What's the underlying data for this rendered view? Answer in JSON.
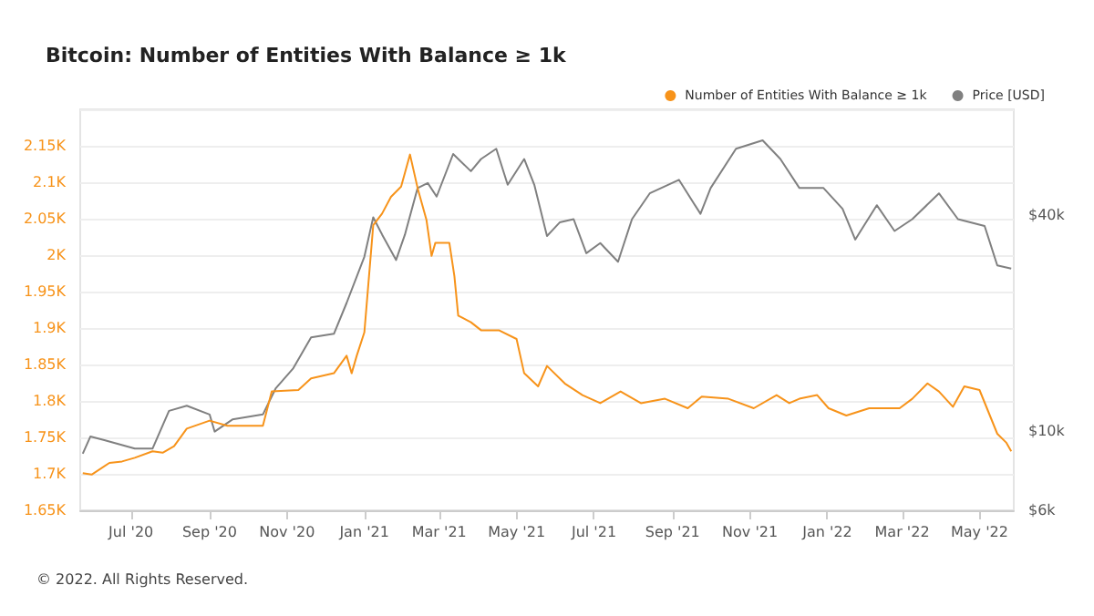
{
  "chart_data": {
    "type": "line",
    "title": "Bitcoin: Number of Entities With Balance ≥ 1k",
    "annotations": [
      "© 2022. All Rights Reserved."
    ],
    "xlim": [
      "2020-05-22",
      "2022-05-28"
    ],
    "xticks": [
      {
        "value": "2020-07-01",
        "label": "Jul '20"
      },
      {
        "value": "2020-09-01",
        "label": "Sep '20"
      },
      {
        "value": "2020-11-01",
        "label": "Nov '20"
      },
      {
        "value": "2021-01-01",
        "label": "Jan '21"
      },
      {
        "value": "2021-03-01",
        "label": "Mar '21"
      },
      {
        "value": "2021-05-01",
        "label": "May '21"
      },
      {
        "value": "2021-07-01",
        "label": "Jul '21"
      },
      {
        "value": "2021-09-01",
        "label": "Sep '21"
      },
      {
        "value": "2021-11-01",
        "label": "Nov '21"
      },
      {
        "value": "2022-01-01",
        "label": "Jan '22"
      },
      {
        "value": "2022-03-01",
        "label": "Mar '22"
      },
      {
        "value": "2022-05-01",
        "label": "May '22"
      }
    ],
    "ylim": [
      1650,
      2200
    ],
    "yticks": [
      {
        "value": 1650,
        "label": "1.65K"
      },
      {
        "value": 1700,
        "label": "1.7K"
      },
      {
        "value": 1750,
        "label": "1.75K"
      },
      {
        "value": 1800,
        "label": "1.8K"
      },
      {
        "value": 1850,
        "label": "1.85K"
      },
      {
        "value": 1900,
        "label": "1.9K"
      },
      {
        "value": 1950,
        "label": "1.95K"
      },
      {
        "value": 2000,
        "label": "2K"
      },
      {
        "value": 2050,
        "label": "2.05K"
      },
      {
        "value": 2100,
        "label": "2.1K"
      },
      {
        "value": 2150,
        "label": "2.15K"
      },
      {
        "value": 2200,
        "label": null
      }
    ],
    "y2lim": [
      6000,
      79000
    ],
    "y2ticks": [
      {
        "value": 6000,
        "label": "$6k"
      },
      {
        "value": 10000,
        "label": "$10k"
      },
      {
        "value": 40000,
        "label": "$40k"
      }
    ],
    "log": "y2",
    "grid": "y",
    "legend": "top right",
    "marker": "none",
    "series": [
      {
        "name": "Number of Entities With Balance ≥ 1k",
        "color": "#f7931a",
        "x": [
          "2020-05-24",
          "2020-05-31",
          "2020-06-14",
          "2020-06-24",
          "2020-07-04",
          "2020-07-18",
          "2020-07-26",
          "2020-08-04",
          "2020-08-14",
          "2020-09-01",
          "2020-09-15",
          "2020-09-25",
          "2020-10-13",
          "2020-10-20",
          "2020-11-10",
          "2020-11-20",
          "2020-12-08",
          "2020-12-18",
          "2020-12-22",
          "2020-12-26",
          "2021-01-01",
          "2021-01-08",
          "2021-01-15",
          "2021-01-22",
          "2021-01-30",
          "2021-02-06",
          "2021-02-12",
          "2021-02-19",
          "2021-02-23",
          "2021-02-26",
          "2021-03-09",
          "2021-03-13",
          "2021-03-16",
          "2021-03-26",
          "2021-04-03",
          "2021-04-17",
          "2021-05-01",
          "2021-05-07",
          "2021-05-18",
          "2021-05-25",
          "2021-06-08",
          "2021-06-22",
          "2021-07-06",
          "2021-07-22",
          "2021-08-07",
          "2021-08-26",
          "2021-09-13",
          "2021-09-24",
          "2021-10-15",
          "2021-11-04",
          "2021-11-22",
          "2021-12-02",
          "2021-12-10",
          "2021-12-24",
          "2022-01-02",
          "2022-01-16",
          "2022-02-03",
          "2022-02-27",
          "2022-03-09",
          "2022-03-21",
          "2022-03-30",
          "2022-04-10",
          "2022-04-19",
          "2022-05-01",
          "2022-05-08",
          "2022-05-15",
          "2022-05-22",
          "2022-05-26"
        ],
        "values": [
          1701,
          1699,
          1715,
          1717,
          1722,
          1731,
          1729,
          1738,
          1762,
          1773,
          1766,
          1766,
          1766,
          1813,
          1815,
          1831,
          1838,
          1862,
          1838,
          1862,
          1894,
          2041,
          2057,
          2080,
          2094,
          2138,
          2092,
          2048,
          1999,
          2017,
          2017,
          1971,
          1917,
          1908,
          1897,
          1897,
          1885,
          1838,
          1820,
          1848,
          1824,
          1808,
          1797,
          1813,
          1797,
          1803,
          1790,
          1806,
          1803,
          1790,
          1808,
          1797,
          1803,
          1808,
          1790,
          1780,
          1790,
          1790,
          1803,
          1824,
          1813,
          1792,
          1820,
          1815,
          1785,
          1755,
          1743,
          1731
        ]
      },
      {
        "name": "Price [USD]",
        "color": "#808080",
        "axis": "y2",
        "x": [
          "2020-05-24",
          "2020-05-30",
          "2020-06-10",
          "2020-07-04",
          "2020-07-18",
          "2020-07-31",
          "2020-08-14",
          "2020-09-01",
          "2020-09-05",
          "2020-09-19",
          "2020-10-13",
          "2020-10-23",
          "2020-11-06",
          "2020-11-20",
          "2020-12-08",
          "2020-12-18",
          "2021-01-01",
          "2021-01-08",
          "2021-01-15",
          "2021-01-26",
          "2021-02-02",
          "2021-02-12",
          "2021-02-20",
          "2021-02-27",
          "2021-03-12",
          "2021-03-26",
          "2021-04-03",
          "2021-04-15",
          "2021-04-24",
          "2021-05-07",
          "2021-05-15",
          "2021-05-25",
          "2021-06-04",
          "2021-06-15",
          "2021-06-25",
          "2021-07-06",
          "2021-07-20",
          "2021-07-31",
          "2021-08-14",
          "2021-09-06",
          "2021-09-23",
          "2021-10-01",
          "2021-10-21",
          "2021-11-11",
          "2021-11-25",
          "2021-12-10",
          "2021-12-29",
          "2022-01-13",
          "2022-01-23",
          "2022-02-09",
          "2022-02-23",
          "2022-03-09",
          "2022-03-30",
          "2022-04-14",
          "2022-05-05",
          "2022-05-15",
          "2022-05-26"
        ],
        "values": [
          8630,
          9640,
          9420,
          8920,
          8920,
          11370,
          11750,
          11110,
          9950,
          10760,
          11110,
          13120,
          14960,
          18240,
          18660,
          22750,
          30620,
          39450,
          35320,
          29990,
          35320,
          47640,
          49200,
          45080,
          59290,
          53090,
          57410,
          61330,
          48640,
          57410,
          48640,
          34990,
          38190,
          39000,
          31330,
          33430,
          29650,
          39000,
          46030,
          50230,
          40360,
          47640,
          61330,
          64710,
          57410,
          47640,
          47640,
          41690,
          34200,
          42660,
          36140,
          39000,
          46030,
          39000,
          37330,
          28970,
          28380
        ]
      }
    ]
  }
}
